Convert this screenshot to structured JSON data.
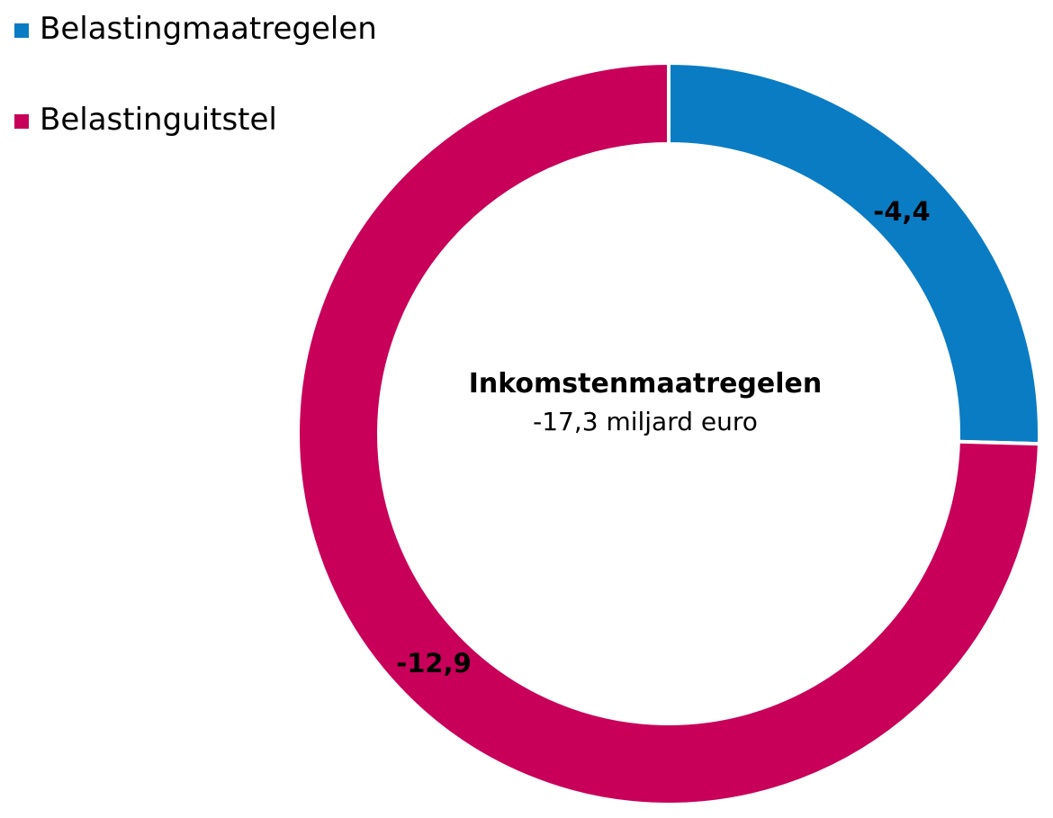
{
  "chart_data": {
    "type": "pie",
    "variant": "donut",
    "center_title": "Inkomstenmaatregelen",
    "center_subtitle": "-17,3 miljard euro",
    "series": [
      {
        "name": "Belastingmaatregelen",
        "value": -4.4,
        "label": "-4,4",
        "color": "#0a7cc4"
      },
      {
        "name": "Belastinguitstel",
        "value": -12.9,
        "label": "-12,9",
        "color": "#c8005a"
      }
    ],
    "legend_position": "top-left"
  }
}
